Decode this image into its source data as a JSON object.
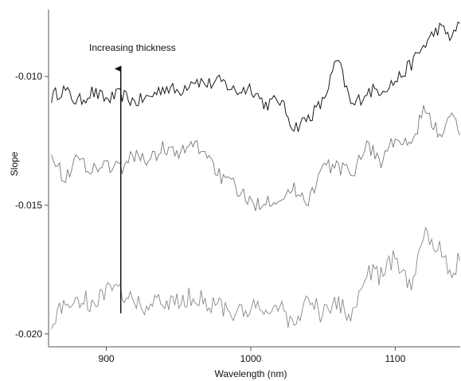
{
  "chart_data": {
    "type": "line",
    "title": "",
    "xlabel": "Wavelength (nm)",
    "ylabel": "Slope",
    "xlim": [
      860,
      1145
    ],
    "ylim": [
      -0.0205,
      -0.0074
    ],
    "x_ticks": [
      900,
      1000,
      1100
    ],
    "x_tick_labels": [
      "900",
      "1000",
      "1100"
    ],
    "y_ticks": [
      -0.01,
      -0.015,
      -0.02
    ],
    "y_tick_labels": [
      "-0.010",
      "-0.015",
      "-0.020"
    ],
    "grid": false,
    "series": [
      {
        "color": "#1a1a1a",
        "x": [
          862,
          870,
          880,
          890,
          900,
          910,
          920,
          930,
          940,
          950,
          960,
          970,
          980,
          990,
          1000,
          1010,
          1020,
          1030,
          1040,
          1050,
          1060,
          1070,
          1080,
          1090,
          1100,
          1110,
          1120,
          1130,
          1140,
          1145
        ],
        "y": [
          -0.0108,
          -0.0105,
          -0.011,
          -0.0106,
          -0.0109,
          -0.0107,
          -0.011,
          -0.0108,
          -0.0104,
          -0.0106,
          -0.0101,
          -0.0103,
          -0.0102,
          -0.0106,
          -0.0104,
          -0.0111,
          -0.0109,
          -0.012,
          -0.0116,
          -0.011,
          -0.0093,
          -0.0112,
          -0.0106,
          -0.0105,
          -0.0102,
          -0.0096,
          -0.0088,
          -0.0081,
          -0.0085,
          -0.0078
        ]
      },
      {
        "color": "#777777",
        "x": [
          862,
          870,
          880,
          890,
          900,
          910,
          920,
          930,
          940,
          950,
          960,
          970,
          980,
          990,
          1000,
          1010,
          1020,
          1030,
          1040,
          1050,
          1060,
          1070,
          1080,
          1090,
          1100,
          1110,
          1120,
          1130,
          1140,
          1145
        ],
        "y": [
          -0.0128,
          -0.014,
          -0.0132,
          -0.0136,
          -0.0134,
          -0.0136,
          -0.013,
          -0.0133,
          -0.0127,
          -0.0131,
          -0.0126,
          -0.013,
          -0.014,
          -0.0143,
          -0.015,
          -0.0148,
          -0.0147,
          -0.0144,
          -0.0148,
          -0.0135,
          -0.0135,
          -0.0138,
          -0.0126,
          -0.0133,
          -0.0124,
          -0.0128,
          -0.0113,
          -0.0122,
          -0.0116,
          -0.0122
        ]
      },
      {
        "color": "#888888",
        "x": [
          862,
          870,
          880,
          890,
          900,
          910,
          920,
          930,
          940,
          950,
          960,
          970,
          980,
          990,
          1000,
          1010,
          1020,
          1030,
          1040,
          1050,
          1060,
          1070,
          1080,
          1090,
          1100,
          1110,
          1120,
          1130,
          1140,
          1145
        ],
        "y": [
          -0.0195,
          -0.019,
          -0.0186,
          -0.0188,
          -0.0184,
          -0.0183,
          -0.0188,
          -0.019,
          -0.0187,
          -0.0188,
          -0.0185,
          -0.0188,
          -0.0189,
          -0.0193,
          -0.019,
          -0.0192,
          -0.0188,
          -0.0198,
          -0.0186,
          -0.0193,
          -0.0188,
          -0.0194,
          -0.0175,
          -0.0178,
          -0.017,
          -0.0182,
          -0.016,
          -0.0166,
          -0.0177,
          -0.017
        ]
      }
    ],
    "annotations": [
      {
        "text": "Increasing thickness",
        "arrow": "upward",
        "arrow_x": 910,
        "arrow_y_from": -0.0192,
        "arrow_y_to": -0.0097
      }
    ]
  }
}
